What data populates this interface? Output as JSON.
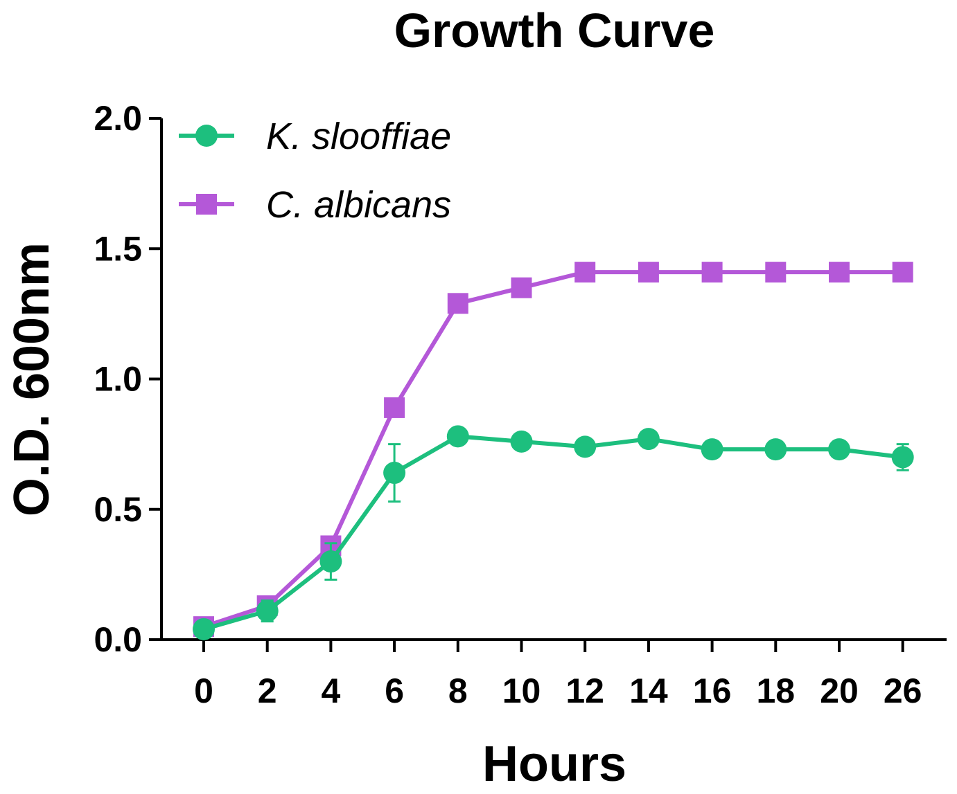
{
  "chart_data": {
    "type": "line",
    "title": "Growth Curve",
    "xlabel": "Hours",
    "ylabel": "O.D. 600nm",
    "categories": [
      "0",
      "2",
      "4",
      "6",
      "8",
      "10",
      "12",
      "14",
      "16",
      "18",
      "20",
      "26"
    ],
    "ylim": [
      0,
      2.0
    ],
    "yticks": [
      "0.0",
      "0.5",
      "1.0",
      "1.5",
      "2.0"
    ],
    "ytick_values": [
      0,
      0.5,
      1.0,
      1.5,
      2.0
    ],
    "grid": false,
    "legend_position": "top-left",
    "series": [
      {
        "name": "K. slooffiae",
        "color": "#1dbf7e",
        "marker": "circle",
        "values": [
          0.04,
          0.11,
          0.3,
          0.64,
          0.78,
          0.76,
          0.74,
          0.77,
          0.73,
          0.73,
          0.73,
          0.7
        ],
        "errors": [
          0.01,
          0.04,
          0.07,
          0.11,
          0.02,
          0.02,
          0.02,
          0.03,
          0.02,
          0.02,
          0.03,
          0.05
        ]
      },
      {
        "name": "C. albicans",
        "color": "#b458d8",
        "marker": "square",
        "values": [
          0.05,
          0.13,
          0.36,
          0.89,
          1.29,
          1.35,
          1.41,
          1.41,
          1.41,
          1.41,
          1.41,
          1.41
        ],
        "errors": [
          0.01,
          0.01,
          0.03,
          0.01,
          0.01,
          0.01,
          0.01,
          0.01,
          0.01,
          0.01,
          0.01,
          0.01
        ]
      }
    ]
  }
}
